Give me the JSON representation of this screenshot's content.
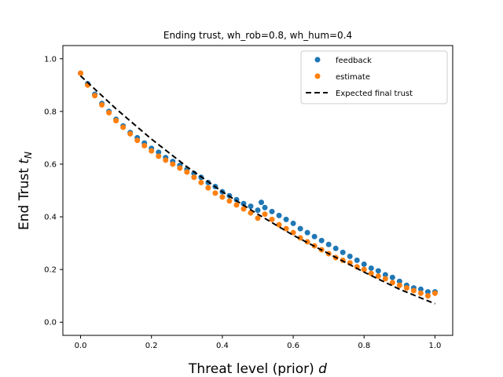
{
  "chart_data": {
    "type": "scatter",
    "title": "Ending trust, wh_rob=0.8, wh_hum=0.4",
    "xlabel": "Threat level (prior) ",
    "xlabel_var": "d",
    "ylabel": "End Trust ",
    "ylabel_var": "t",
    "ylabel_sub": "N",
    "xlim": [
      -0.05,
      1.05
    ],
    "ylim": [
      -0.05,
      1.05
    ],
    "xticks": [
      "0.0",
      "0.2",
      "0.4",
      "0.6",
      "0.8",
      "1.0"
    ],
    "yticks": [
      "0.0",
      "0.2",
      "0.4",
      "0.6",
      "0.8",
      "1.0"
    ],
    "grid": false,
    "legend_position": "top-right",
    "series": [
      {
        "name": "feedback",
        "kind": "scatter",
        "color": "#1f77b4",
        "x": [
          0.0,
          0.02,
          0.04,
          0.06,
          0.08,
          0.1,
          0.12,
          0.14,
          0.16,
          0.18,
          0.2,
          0.22,
          0.24,
          0.26,
          0.28,
          0.3,
          0.32,
          0.34,
          0.36,
          0.38,
          0.4,
          0.42,
          0.44,
          0.46,
          0.48,
          0.5,
          0.51,
          0.52,
          0.54,
          0.56,
          0.58,
          0.6,
          0.62,
          0.64,
          0.66,
          0.68,
          0.7,
          0.72,
          0.74,
          0.76,
          0.78,
          0.8,
          0.82,
          0.84,
          0.86,
          0.88,
          0.9,
          0.92,
          0.94,
          0.96,
          0.98,
          1.0
        ],
        "y": [
          0.945,
          0.905,
          0.865,
          0.83,
          0.8,
          0.77,
          0.745,
          0.72,
          0.7,
          0.68,
          0.66,
          0.645,
          0.625,
          0.61,
          0.595,
          0.58,
          0.565,
          0.55,
          0.53,
          0.515,
          0.495,
          0.48,
          0.465,
          0.45,
          0.44,
          0.425,
          0.455,
          0.435,
          0.42,
          0.405,
          0.39,
          0.375,
          0.355,
          0.34,
          0.325,
          0.31,
          0.295,
          0.28,
          0.265,
          0.25,
          0.235,
          0.22,
          0.205,
          0.195,
          0.18,
          0.17,
          0.155,
          0.14,
          0.13,
          0.125,
          0.115,
          0.115
        ]
      },
      {
        "name": "estimate",
        "kind": "scatter",
        "color": "#ff7f0e",
        "x": [
          0.0,
          0.02,
          0.04,
          0.06,
          0.08,
          0.1,
          0.12,
          0.14,
          0.16,
          0.18,
          0.2,
          0.22,
          0.24,
          0.26,
          0.28,
          0.3,
          0.32,
          0.34,
          0.36,
          0.38,
          0.4,
          0.42,
          0.44,
          0.46,
          0.48,
          0.5,
          0.52,
          0.54,
          0.56,
          0.58,
          0.6,
          0.62,
          0.64,
          0.66,
          0.68,
          0.7,
          0.72,
          0.74,
          0.76,
          0.78,
          0.8,
          0.82,
          0.84,
          0.86,
          0.88,
          0.9,
          0.92,
          0.94,
          0.96,
          0.98,
          1.0
        ],
        "y": [
          0.945,
          0.9,
          0.86,
          0.825,
          0.795,
          0.765,
          0.74,
          0.715,
          0.69,
          0.67,
          0.65,
          0.63,
          0.615,
          0.6,
          0.585,
          0.57,
          0.55,
          0.53,
          0.51,
          0.49,
          0.475,
          0.46,
          0.445,
          0.43,
          0.415,
          0.395,
          0.41,
          0.39,
          0.37,
          0.355,
          0.34,
          0.32,
          0.305,
          0.29,
          0.275,
          0.26,
          0.245,
          0.235,
          0.225,
          0.21,
          0.2,
          0.185,
          0.175,
          0.165,
          0.15,
          0.14,
          0.13,
          0.12,
          0.11,
          0.1,
          0.11
        ]
      },
      {
        "name": "Expected final trust",
        "kind": "line",
        "style": "dashed",
        "color": "#000000",
        "x": [
          0.0,
          0.1,
          0.2,
          0.3,
          0.4,
          0.5,
          0.6,
          0.7,
          0.8,
          0.9,
          1.0
        ],
        "y": [
          0.935,
          0.81,
          0.695,
          0.59,
          0.495,
          0.41,
          0.33,
          0.26,
          0.19,
          0.125,
          0.07
        ]
      }
    ]
  }
}
